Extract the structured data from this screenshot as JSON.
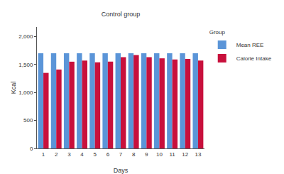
{
  "chart_data": {
    "type": "bar",
    "title": "Control group",
    "x_label": "Days",
    "y_label": "Kcal",
    "legend_title": "Group",
    "categories": [
      "1",
      "2",
      "3",
      "4",
      "5",
      "6",
      "7",
      "8",
      "9",
      "10",
      "11",
      "12",
      "13"
    ],
    "series": [
      {
        "name": "Mean REE",
        "color": "#5b95d8",
        "values": [
          1700,
          1700,
          1700,
          1700,
          1700,
          1700,
          1700,
          1700,
          1700,
          1700,
          1700,
          1700,
          1700
        ]
      },
      {
        "name": "Calorie Intake",
        "color": "#c8103c",
        "values": [
          1350,
          1410,
          1550,
          1570,
          1540,
          1550,
          1630,
          1670,
          1630,
          1610,
          1590,
          1600,
          1570
        ]
      }
    ],
    "ylim": [
      0,
      2170
    ],
    "yticks": [
      0,
      500,
      {
        "value": 1000,
        "label": "1,000"
      },
      {
        "value": 1500,
        "label": "1,500"
      },
      {
        "value": 2000,
        "label": "2,000"
      }
    ],
    "grid": false,
    "legend": "top-right"
  }
}
